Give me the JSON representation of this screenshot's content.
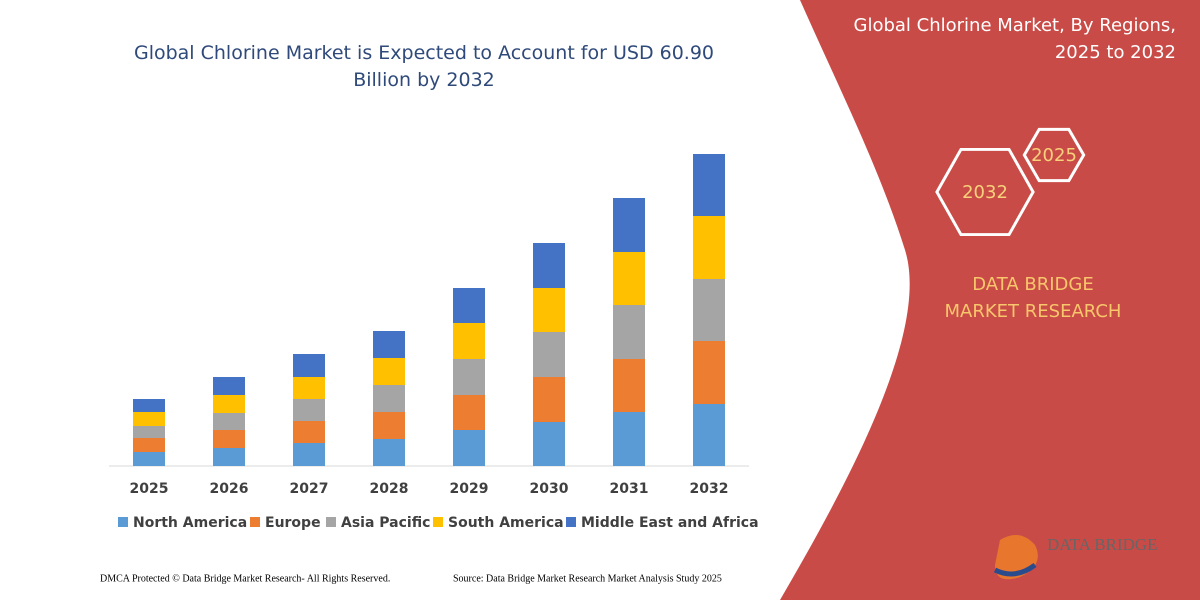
{
  "chart_data": {
    "type": "stacked_bar",
    "title": "Global Chlorine Market is Expected to Account for USD 60.90 Billion by 2032",
    "categories": [
      "2025",
      "2026",
      "2027",
      "2028",
      "2029",
      "2030",
      "2031",
      "2032"
    ],
    "series": [
      {
        "name": "North America",
        "color": "#5b9bd5",
        "values": [
          14,
          18,
          23,
          27,
          36,
          44,
          54,
          62
        ]
      },
      {
        "name": "Europe",
        "color": "#ed7d31",
        "values": [
          14,
          18,
          22,
          27,
          35,
          45,
          53,
          63
        ]
      },
      {
        "name": "Asia Pacific",
        "color": "#a5a5a5",
        "values": [
          12,
          17,
          22,
          27,
          36,
          45,
          54,
          62
        ]
      },
      {
        "name": "South America",
        "color": "#ffc000",
        "values": [
          14,
          18,
          22,
          27,
          36,
          44,
          53,
          63
        ]
      },
      {
        "name": "Middle East and Africa",
        "color": "#4472c4",
        "values": [
          13,
          18,
          23,
          27,
          35,
          45,
          54,
          62
        ]
      }
    ],
    "ylim": [
      0,
      320
    ],
    "legend": "bottom"
  },
  "panel": {
    "title": "Global Chlorine Market, By Regions, 2025 to 2032",
    "hex_labels": [
      "2032",
      "2025"
    ],
    "brand": "DATA BRIDGE MARKET RESEARCH",
    "logo": "DATA BRIDGE"
  },
  "footer": {
    "left": "DMCA Protected © Data Bridge Market Research-  All Rights Reserved.",
    "right": "Source: Data Bridge Market Research  Market Analysis Study 2025"
  }
}
